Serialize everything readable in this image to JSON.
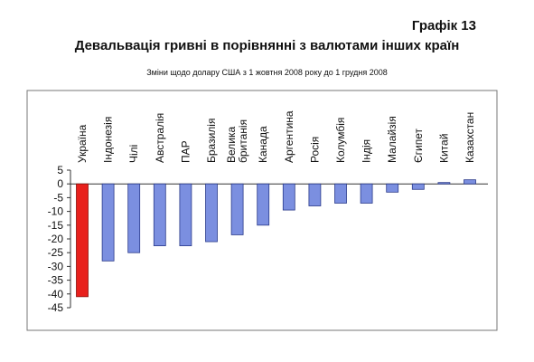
{
  "header": {
    "graph_label": "Графік 13",
    "title": "Девальвація гривні в порівнянні з валютами інших країн",
    "subtitle": "Зміни щодо долару США з 1 жовтня 2008 року до 1 грудня 2008"
  },
  "chart_data": {
    "type": "bar",
    "title": "Девальвація гривні в порівнянні з валютами інших країн",
    "subtitle": "Зміни щодо долару США з 1 жовтня 2008 року до 1 грудня 2008",
    "xlabel": "",
    "ylabel": "",
    "categories": [
      "Україна",
      "Індонезія",
      "Чілі",
      "Австралія",
      "ПАР",
      "Бразилія",
      "Велика британія",
      "Канада",
      "Аргентина",
      "Росія",
      "Колумбія",
      "Індія",
      "Малайзія",
      "Єгипет",
      "Китай",
      "Казахстан"
    ],
    "category_label_lines": [
      [
        "Україна"
      ],
      [
        "Індонезія"
      ],
      [
        "Чілі"
      ],
      [
        "Австралія"
      ],
      [
        "ПАР"
      ],
      [
        "Бразилія"
      ],
      [
        "Велика",
        "британія"
      ],
      [
        "Канада"
      ],
      [
        "Аргентина"
      ],
      [
        "Росія"
      ],
      [
        "Колумбія"
      ],
      [
        "Індія"
      ],
      [
        "Малайзія"
      ],
      [
        "Єгипет"
      ],
      [
        "Китай"
      ],
      [
        "Казахстан"
      ]
    ],
    "values": [
      -41,
      -28,
      -25,
      -22.5,
      -22.5,
      -21,
      -18.5,
      -15,
      -9.5,
      -8,
      -7,
      -7,
      -3,
      -2,
      0.5,
      1.5
    ],
    "ylim": [
      -45,
      5
    ],
    "yticks": [
      "5",
      "0",
      "-5",
      "-10",
      "-15",
      "-20",
      "-25",
      "-30",
      "-35",
      "-40",
      "-45"
    ],
    "grid": false,
    "legend": "none",
    "colors": {
      "highlight": "#e8201c",
      "highlight_edge": "#8a0f0c",
      "default": "#7b8fe0",
      "default_edge": "#2a3a8a",
      "axis": "#333333"
    }
  }
}
